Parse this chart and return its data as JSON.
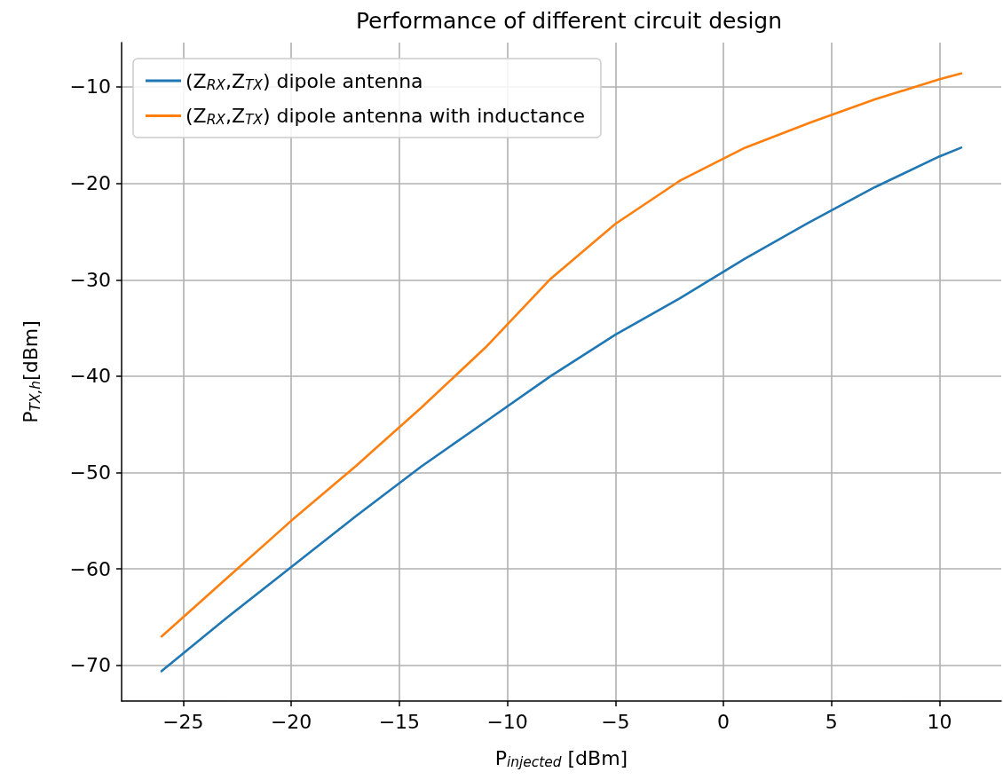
{
  "chart_data": {
    "type": "line",
    "title": "Performance of different circuit design",
    "xlabel": "P$_{injected}$ [dBm]",
    "ylabel": "P$_{TX,h}$[dBm]",
    "x": [
      -26,
      -23,
      -20,
      -17,
      -14,
      -11,
      -8,
      -5,
      -2,
      1,
      4,
      7,
      10,
      11
    ],
    "series": [
      {
        "name": "(Z$_{RX}$,Z$_{TX}$) dipole antenna",
        "color": "#1f77b4",
        "values": [
          -70.6,
          -65.1,
          -59.8,
          -54.5,
          -49.4,
          -44.7,
          -40.0,
          -35.7,
          -31.9,
          -27.8,
          -24.0,
          -20.4,
          -17.2,
          -16.3
        ]
      },
      {
        "name": "(Z$_{RX}$,Z$_{TX}$) dipole antenna with inductance",
        "color": "#ff7f0e",
        "values": [
          -67.0,
          -61.0,
          -55.0,
          -49.3,
          -43.3,
          -37.0,
          -29.9,
          -24.2,
          -19.7,
          -16.3,
          -13.7,
          -11.3,
          -9.2,
          -8.6
        ]
      }
    ],
    "xlim": [
      -27.85,
      12.85
    ],
    "xticks": [
      -25,
      -20,
      -15,
      -10,
      -5,
      0,
      5,
      10
    ],
    "ylim": [
      -73.7,
      -5.4
    ],
    "yticks": [
      -70,
      -60,
      -50,
      -40,
      -30,
      -20,
      -10
    ],
    "grid": true,
    "legend": "top left",
    "marker": "none",
    "line_style": "solid"
  }
}
